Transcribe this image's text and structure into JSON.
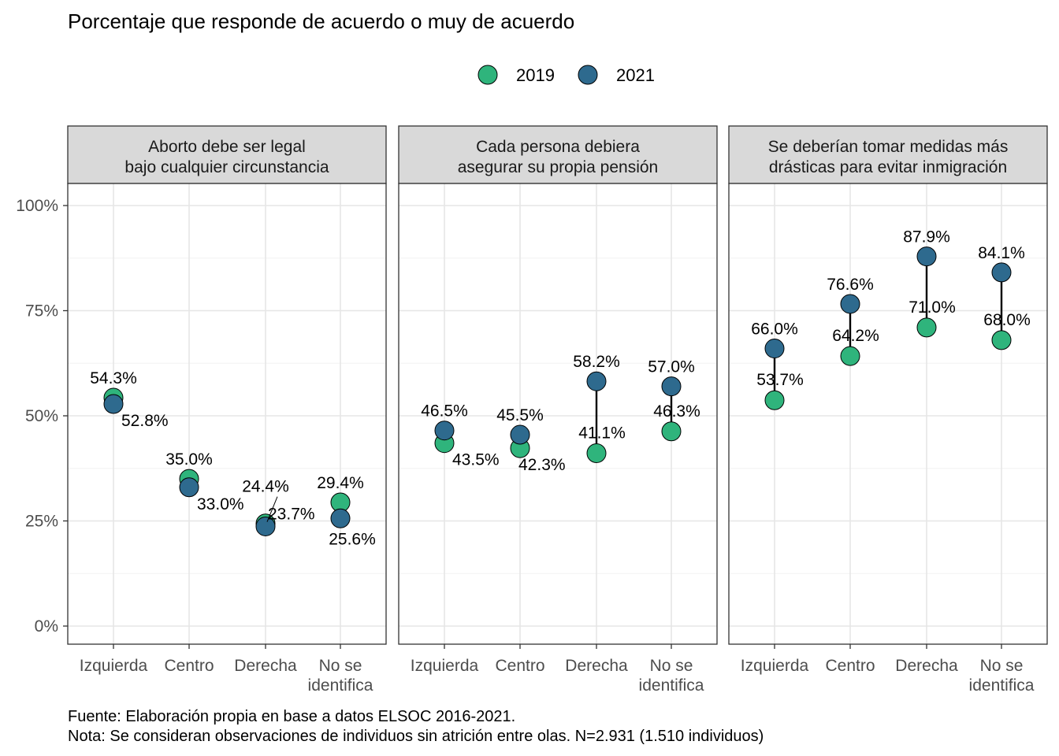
{
  "title": "Porcentaje que responde de acuerdo o muy de acuerdo",
  "legend": {
    "items": [
      {
        "label": "2019",
        "color": "#2fb47c"
      },
      {
        "label": "2021",
        "color": "#2e6a8e"
      }
    ]
  },
  "caption": {
    "line1": "Fuente: Elaboración propia en base a datos ELSOC 2016-2021.",
    "line2": "Nota: Se consideran observaciones de individuos sin atrición entre olas. N=2.931 (1.510 individuos)"
  },
  "chart_data": [
    {
      "type": "scatter",
      "panel_title": [
        "Aborto debe ser legal",
        "bajo cualquier circunstancia"
      ],
      "categories": [
        "Izquierda",
        "Centro",
        "Derecha",
        "No se identifica"
      ],
      "category_lines": [
        [
          "Izquierda"
        ],
        [
          "Centro"
        ],
        [
          "Derecha"
        ],
        [
          "No se",
          "identifica"
        ]
      ],
      "series": [
        {
          "name": "2019",
          "values": [
            54.3,
            35.0,
            24.4,
            29.4
          ],
          "labels": [
            "54.3%",
            "35.0%",
            "24.4%",
            "29.4%"
          ]
        },
        {
          "name": "2021",
          "values": [
            52.8,
            33.0,
            23.7,
            25.6
          ],
          "labels": [
            "52.8%",
            "33.0%",
            "23.7%",
            "25.6%"
          ]
        }
      ],
      "ylim": [
        0,
        100
      ]
    },
    {
      "type": "scatter",
      "panel_title": [
        "Cada persona debiera",
        "asegurar su propia pensión"
      ],
      "categories": [
        "Izquierda",
        "Centro",
        "Derecha",
        "No se identifica"
      ],
      "category_lines": [
        [
          "Izquierda"
        ],
        [
          "Centro"
        ],
        [
          "Derecha"
        ],
        [
          "No se",
          "identifica"
        ]
      ],
      "series": [
        {
          "name": "2019",
          "values": [
            43.5,
            42.3,
            41.1,
            46.3
          ],
          "labels": [
            "43.5%",
            "42.3%",
            "41.1%",
            "46.3%"
          ]
        },
        {
          "name": "2021",
          "values": [
            46.5,
            45.5,
            58.2,
            57.0
          ],
          "labels": [
            "46.5%",
            "45.5%",
            "58.2%",
            "57.0%"
          ]
        }
      ],
      "ylim": [
        0,
        100
      ]
    },
    {
      "type": "scatter",
      "panel_title": [
        "Se deberían tomar medidas más",
        "drásticas para evitar inmigración"
      ],
      "categories": [
        "Izquierda",
        "Centro",
        "Derecha",
        "No se identifica"
      ],
      "category_lines": [
        [
          "Izquierda"
        ],
        [
          "Centro"
        ],
        [
          "Derecha"
        ],
        [
          "No se",
          "identifica"
        ]
      ],
      "series": [
        {
          "name": "2019",
          "values": [
            53.7,
            64.2,
            71.0,
            68.0
          ],
          "labels": [
            "53.7%",
            "64.2%",
            "71.0%",
            "68.0%"
          ]
        },
        {
          "name": "2021",
          "values": [
            66.0,
            76.6,
            87.9,
            84.1
          ],
          "labels": [
            "66.0%",
            "76.6%",
            "87.9%",
            "84.1%"
          ]
        }
      ],
      "ylim": [
        0,
        100
      ]
    }
  ],
  "y_ticks": [
    {
      "value": 0,
      "label": "0%"
    },
    {
      "value": 25,
      "label": "25%"
    },
    {
      "value": 50,
      "label": "50%"
    },
    {
      "value": 75,
      "label": "75%"
    },
    {
      "value": 100,
      "label": "100%"
    }
  ],
  "grid": true
}
